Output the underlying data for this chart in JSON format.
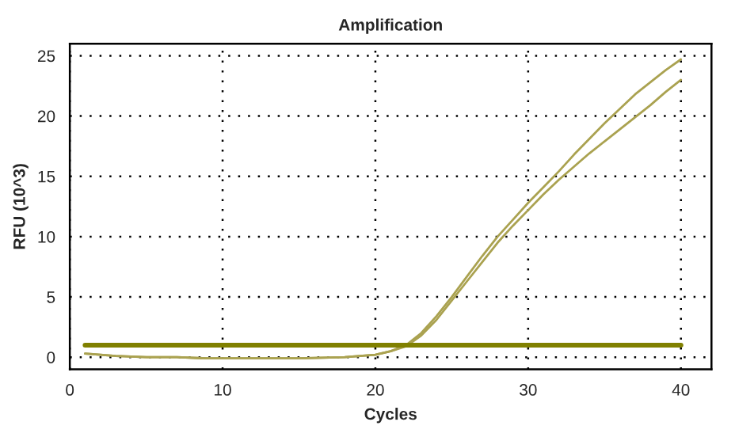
{
  "chart_data": {
    "type": "line",
    "title": "Amplification",
    "xlabel": "Cycles",
    "ylabel": "RFU (10^3)",
    "xlim": [
      0,
      42
    ],
    "ylim": [
      -1,
      26
    ],
    "xticks": [
      0,
      10,
      20,
      30,
      40
    ],
    "yticks": [
      0,
      5,
      10,
      15,
      20,
      25
    ],
    "grid": true,
    "line_style": "solid",
    "marker": "none",
    "series": [
      {
        "color": "#aaa250",
        "x": [
          1,
          3,
          5,
          7,
          9,
          12,
          15,
          18,
          20,
          21,
          22,
          23,
          24,
          25,
          26,
          27,
          28,
          29,
          30,
          31,
          32,
          33,
          34,
          35,
          36,
          37,
          38,
          39,
          40
        ],
        "values": [
          0.3,
          0.1,
          0,
          0,
          -0.1,
          -0.1,
          -0.1,
          0,
          0.2,
          0.5,
          1.0,
          2.0,
          3.4,
          5.0,
          6.7,
          8.4,
          10.0,
          11.4,
          12.8,
          14.1,
          15.4,
          16.8,
          18.1,
          19.4,
          20.6,
          21.8,
          22.8,
          23.8,
          24.7
        ]
      },
      {
        "color": "#aaa250",
        "x": [
          1,
          3,
          5,
          7,
          9,
          12,
          15,
          18,
          20,
          21,
          22,
          23,
          24,
          25,
          26,
          27,
          28,
          29,
          30,
          31,
          32,
          33,
          34,
          35,
          36,
          37,
          38,
          39,
          40
        ],
        "values": [
          0.3,
          0.1,
          0,
          0,
          -0.1,
          -0.1,
          -0.1,
          0,
          0.2,
          0.5,
          0.9,
          1.8,
          3.1,
          4.7,
          6.3,
          7.9,
          9.5,
          10.9,
          12.2,
          13.5,
          14.7,
          15.8,
          16.9,
          17.9,
          18.9,
          19.9,
          20.9,
          22.0,
          23.0
        ]
      },
      {
        "color": "#808000",
        "x": [
          1,
          40
        ],
        "values": [
          1.0,
          1.0
        ]
      }
    ]
  }
}
